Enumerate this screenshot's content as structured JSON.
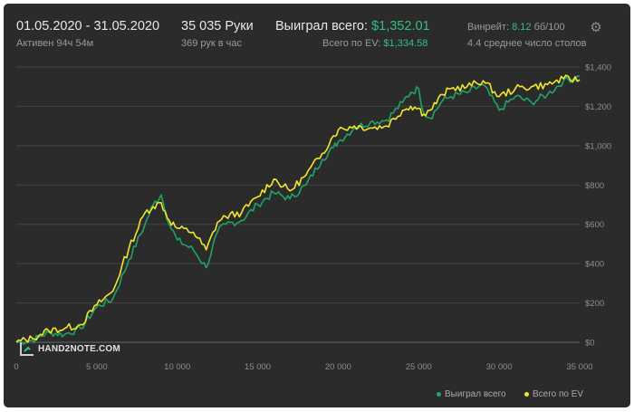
{
  "header": {
    "date_range": "01.05.2020 - 31.05.2020",
    "active": "Активен 94ч 54м",
    "hands": "35 035 Руки",
    "hands_rate": "369 рук в час",
    "won_label": "Выиграл всего:",
    "won_value": "$1,352.01",
    "ev_label": "Всего по EV:",
    "ev_value": "$1,334.58",
    "winrate_label": "Винрейт:",
    "winrate_value": "8.12",
    "winrate_unit": "бб/100",
    "tables": "4.4 среднее число столов",
    "settings_icon": "gear-icon"
  },
  "watermark": {
    "text": "HAND2NOTE.COM",
    "icon": "hand2note-logo"
  },
  "colors": {
    "background": "#2b2b2c",
    "won_line": "#1fa463",
    "ev_line": "#f2e62a",
    "accent_green": "#2fc27f",
    "grid": "#444444"
  },
  "legend": {
    "won": "Выиграл всего",
    "ev": "Всего по EV",
    "placement": "bottom-right"
  },
  "chart_data": {
    "type": "line",
    "xlim": [
      0,
      35000
    ],
    "ylim": [
      0,
      1400
    ],
    "x_ticks": [
      0,
      5000,
      10000,
      15000,
      20000,
      25000,
      30000,
      35000
    ],
    "x_tick_labels": [
      "0",
      "5 000",
      "10 000",
      "15 000",
      "20 000",
      "25 000",
      "30 000",
      "35 000"
    ],
    "y_ticks": [
      0,
      200,
      400,
      600,
      800,
      1000,
      1200,
      1400
    ],
    "y_tick_labels": [
      "$0",
      "$200",
      "$400",
      "$600",
      "$800",
      "$1,000",
      "$1,200",
      "$1,400"
    ],
    "grid": true,
    "x": [
      0,
      1000,
      1500,
      2000,
      3000,
      4000,
      5000,
      6000,
      7000,
      8000,
      8500,
      9000,
      9500,
      10000,
      11000,
      11800,
      12500,
      13000,
      14000,
      15000,
      16000,
      17000,
      18000,
      19000,
      19700,
      20000,
      21000,
      22000,
      23000,
      24000,
      24500,
      25000,
      25300,
      25700,
      26500,
      27000,
      28000,
      29000,
      30000,
      31000,
      32000,
      33000,
      34000,
      35000
    ],
    "series": [
      {
        "name": "Выиграл всего",
        "values": [
          0,
          10,
          30,
          50,
          40,
          70,
          180,
          220,
          420,
          600,
          700,
          750,
          600,
          520,
          470,
          380,
          560,
          600,
          620,
          700,
          760,
          730,
          800,
          930,
          990,
          1020,
          1090,
          1120,
          1130,
          1220,
          1270,
          1290,
          1170,
          1140,
          1230,
          1250,
          1270,
          1310,
          1180,
          1250,
          1220,
          1260,
          1330,
          1352
        ]
      },
      {
        "name": "Всего по EV",
        "values": [
          0,
          20,
          40,
          60,
          70,
          90,
          190,
          260,
          480,
          660,
          690,
          710,
          620,
          580,
          560,
          470,
          610,
          640,
          660,
          740,
          830,
          770,
          850,
          960,
          1050,
          1080,
          1100,
          1090,
          1100,
          1180,
          1200,
          1190,
          1160,
          1180,
          1260,
          1290,
          1300,
          1330,
          1250,
          1290,
          1300,
          1310,
          1340,
          1335
        ]
      }
    ]
  }
}
